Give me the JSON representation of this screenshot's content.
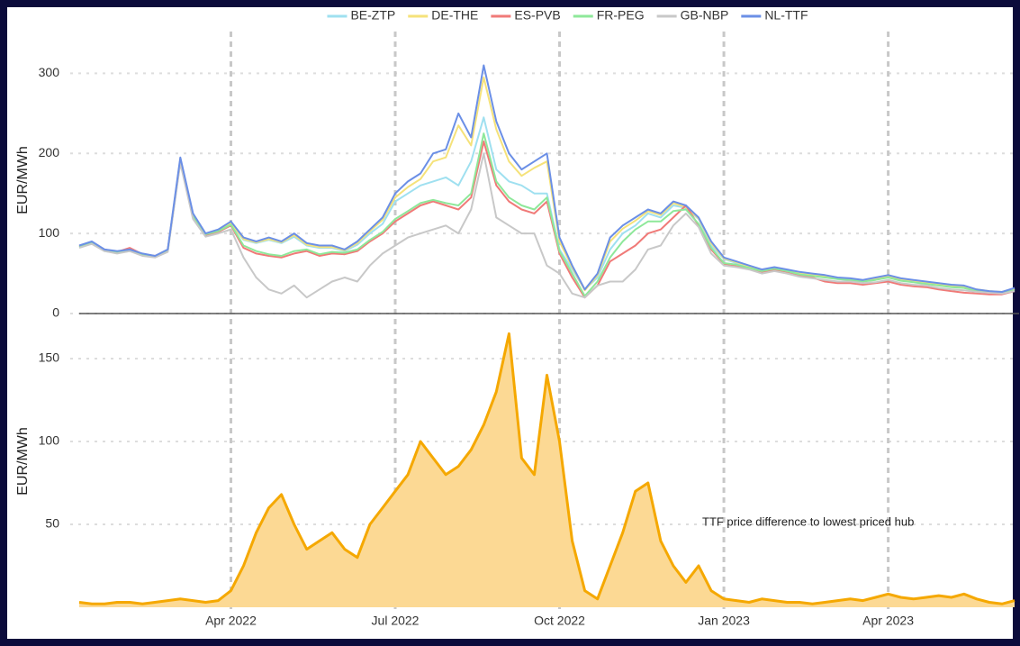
{
  "chart_data": [
    {
      "type": "line",
      "y_label": "EUR/MWh",
      "ylim": [
        0,
        350
      ],
      "yticks": [
        0,
        100,
        200,
        300
      ],
      "grid": true,
      "legend": "top",
      "series": [
        {
          "name": "BE-ZTP",
          "color": "#9fe0f0",
          "values": [
            83,
            88,
            78,
            76,
            78,
            73,
            71,
            78,
            190,
            120,
            98,
            102,
            112,
            92,
            88,
            92,
            88,
            96,
            85,
            82,
            82,
            78,
            86,
            100,
            112,
            140,
            150,
            160,
            165,
            170,
            160,
            190,
            245,
            180,
            165,
            160,
            150,
            150,
            80,
            55,
            30,
            45,
            80,
            100,
            110,
            125,
            120,
            135,
            132,
            118,
            85,
            68,
            63,
            58,
            53,
            56,
            53,
            50,
            48,
            46,
            43,
            42,
            40,
            43,
            46,
            42,
            40,
            38,
            36,
            34,
            33,
            29,
            27,
            26,
            30
          ]
        },
        {
          "name": "DE-THE",
          "color": "#f5e27a",
          "values": [
            84,
            88,
            79,
            77,
            79,
            74,
            71,
            79,
            193,
            123,
            99,
            104,
            113,
            93,
            89,
            93,
            89,
            98,
            86,
            83,
            83,
            79,
            88,
            103,
            117,
            145,
            158,
            168,
            190,
            195,
            235,
            210,
            295,
            230,
            190,
            172,
            182,
            190,
            90,
            58,
            29,
            48,
            90,
            106,
            116,
            128,
            123,
            138,
            133,
            119,
            88,
            69,
            64,
            59,
            54,
            57,
            54,
            51,
            49,
            47,
            44,
            43,
            41,
            44,
            47,
            43,
            41,
            39,
            37,
            35,
            34,
            30,
            28,
            27,
            31
          ]
        },
        {
          "name": "ES-PVB",
          "color": "#f07a78",
          "values": [
            84,
            89,
            80,
            77,
            82,
            74,
            72,
            79,
            190,
            120,
            98,
            102,
            110,
            82,
            75,
            72,
            70,
            75,
            78,
            72,
            75,
            74,
            78,
            90,
            100,
            115,
            125,
            135,
            140,
            135,
            130,
            145,
            215,
            160,
            140,
            130,
            125,
            140,
            75,
            45,
            20,
            35,
            65,
            75,
            85,
            100,
            105,
            120,
            135,
            110,
            80,
            62,
            60,
            56,
            52,
            55,
            52,
            48,
            45,
            40,
            38,
            38,
            36,
            38,
            40,
            36,
            34,
            33,
            30,
            28,
            26,
            25,
            24,
            24,
            28
          ]
        },
        {
          "name": "FR-PEG",
          "color": "#8ee89a",
          "values": [
            83,
            88,
            79,
            76,
            79,
            74,
            71,
            78,
            192,
            122,
            99,
            103,
            111,
            85,
            78,
            74,
            72,
            78,
            80,
            74,
            77,
            76,
            80,
            92,
            102,
            118,
            128,
            138,
            142,
            138,
            135,
            150,
            225,
            165,
            145,
            135,
            130,
            145,
            78,
            50,
            22,
            40,
            70,
            90,
            105,
            115,
            115,
            128,
            130,
            112,
            82,
            63,
            61,
            57,
            53,
            56,
            53,
            49,
            47,
            45,
            43,
            42,
            40,
            42,
            45,
            41,
            39,
            37,
            35,
            33,
            32,
            28,
            27,
            26,
            29
          ]
        },
        {
          "name": "GB-NBP",
          "color": "#c8c8c8",
          "values": [
            82,
            87,
            78,
            75,
            78,
            72,
            70,
            77,
            188,
            118,
            96,
            100,
            105,
            70,
            45,
            30,
            25,
            35,
            20,
            30,
            40,
            45,
            40,
            60,
            75,
            85,
            95,
            100,
            105,
            110,
            100,
            130,
            200,
            120,
            110,
            100,
            100,
            60,
            50,
            25,
            20,
            35,
            40,
            40,
            55,
            80,
            85,
            110,
            125,
            108,
            75,
            60,
            58,
            55,
            50,
            53,
            50,
            46,
            44,
            42,
            40,
            40,
            38,
            39,
            42,
            38,
            36,
            35,
            32,
            30,
            29,
            27,
            26,
            25,
            28
          ]
        },
        {
          "name": "NL-TTF",
          "color": "#6b8fe6",
          "values": [
            85,
            90,
            80,
            78,
            80,
            75,
            72,
            80,
            195,
            125,
            100,
            105,
            115,
            95,
            90,
            95,
            90,
            100,
            88,
            85,
            85,
            80,
            90,
            105,
            120,
            150,
            165,
            175,
            200,
            205,
            250,
            220,
            310,
            240,
            200,
            180,
            190,
            200,
            95,
            60,
            30,
            50,
            95,
            110,
            120,
            130,
            125,
            140,
            135,
            120,
            90,
            70,
            65,
            60,
            55,
            58,
            55,
            52,
            50,
            48,
            45,
            44,
            42,
            45,
            48,
            44,
            42,
            40,
            38,
            36,
            35,
            30,
            28,
            27,
            32
          ]
        }
      ]
    },
    {
      "type": "area",
      "y_label": "EUR/MWh",
      "ylim": [
        0,
        175
      ],
      "yticks": [
        50,
        100,
        150
      ],
      "grid": true,
      "color": "#f5a800",
      "fill": "#fcd994",
      "annotation": "TTF price difference to lowest priced hub",
      "categories": [
        null,
        null,
        null,
        null,
        null,
        null,
        null,
        null,
        null,
        null,
        null,
        null,
        "Apr 2022",
        null,
        null,
        null,
        null,
        null,
        null,
        null,
        null,
        null,
        null,
        null,
        null,
        "Jul 2022",
        null,
        null,
        null,
        null,
        null,
        null,
        null,
        null,
        null,
        null,
        null,
        null,
        "Oct 2022",
        null,
        null,
        null,
        null,
        null,
        null,
        null,
        null,
        null,
        null,
        null,
        null,
        "Jan 2023",
        null,
        null,
        null,
        null,
        null,
        null,
        null,
        null,
        null,
        null,
        null,
        null,
        "Apr 2023",
        null,
        null,
        null,
        null,
        null,
        null,
        null,
        null,
        null,
        null
      ],
      "values": [
        3,
        2,
        2,
        3,
        3,
        2,
        3,
        4,
        5,
        4,
        3,
        4,
        10,
        25,
        45,
        60,
        68,
        50,
        35,
        40,
        45,
        35,
        30,
        50,
        60,
        70,
        80,
        100,
        90,
        80,
        85,
        95,
        110,
        130,
        165,
        90,
        80,
        140,
        100,
        40,
        10,
        5,
        25,
        45,
        70,
        75,
        40,
        25,
        15,
        25,
        10,
        5,
        4,
        3,
        5,
        4,
        3,
        3,
        2,
        3,
        4,
        5,
        4,
        6,
        8,
        6,
        5,
        6,
        7,
        6,
        8,
        5,
        3,
        2,
        4
      ]
    }
  ]
}
